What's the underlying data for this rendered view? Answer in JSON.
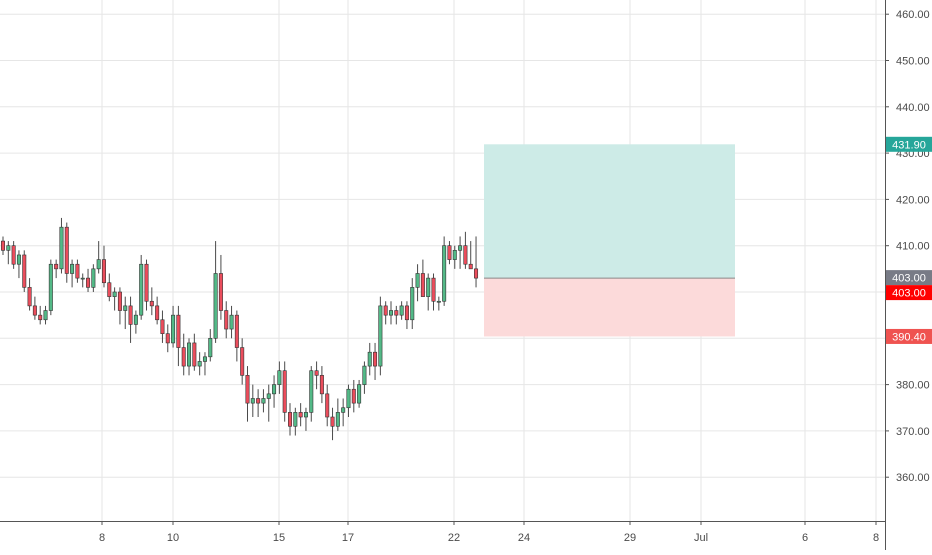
{
  "chart_data": {
    "type": "candlestick",
    "y_axis": {
      "ticks": [
        "460.00",
        "450.00",
        "440.00",
        "430.00",
        "420.00",
        "410.00",
        "400.00",
        "390.00",
        "380.00",
        "370.00",
        "360.00"
      ],
      "tick_values": [
        460,
        450,
        440,
        430,
        420,
        410,
        400,
        390,
        380,
        370,
        360
      ],
      "range": [
        351,
        463
      ]
    },
    "x_axis": {
      "ticks": [
        "8",
        "10",
        "15",
        "17",
        "22",
        "24",
        "29",
        "Jul",
        "6",
        "8"
      ]
    },
    "candles": [
      [
        411,
        412,
        408,
        409
      ],
      [
        409,
        411,
        406,
        410
      ],
      [
        410,
        411,
        405,
        406
      ],
      [
        406,
        409,
        403,
        408
      ],
      [
        408,
        409,
        400,
        401
      ],
      [
        401,
        403,
        396,
        397
      ],
      [
        397,
        399,
        394,
        395
      ],
      [
        395,
        397,
        393,
        394
      ],
      [
        394,
        397,
        393,
        396
      ],
      [
        396,
        407,
        395,
        406
      ],
      [
        406,
        407,
        403,
        405
      ],
      [
        405,
        416,
        404,
        414
      ],
      [
        414,
        415,
        402,
        404
      ],
      [
        404,
        407,
        401,
        406
      ],
      [
        406,
        407,
        402,
        403
      ],
      [
        403,
        404,
        401,
        403
      ],
      [
        403,
        405,
        400,
        401
      ],
      [
        401,
        406,
        400,
        405
      ],
      [
        405,
        411,
        404,
        407
      ],
      [
        407,
        410,
        401,
        402
      ],
      [
        402,
        404,
        398,
        399
      ],
      [
        399,
        401,
        396,
        400
      ],
      [
        400,
        401,
        393,
        396
      ],
      [
        396,
        399,
        392,
        397
      ],
      [
        397,
        399,
        389,
        393
      ],
      [
        393,
        396,
        391,
        395
      ],
      [
        395,
        408,
        394,
        406
      ],
      [
        406,
        407,
        396,
        398
      ],
      [
        398,
        401,
        395,
        397
      ],
      [
        397,
        399,
        393,
        394
      ],
      [
        394,
        396,
        389,
        391
      ],
      [
        391,
        393,
        387,
        389
      ],
      [
        389,
        397,
        388,
        395
      ],
      [
        395,
        397,
        384,
        388
      ],
      [
        388,
        391,
        382,
        384
      ],
      [
        384,
        390,
        382,
        389
      ],
      [
        389,
        391,
        383,
        384
      ],
      [
        384,
        387,
        382,
        385
      ],
      [
        385,
        387,
        382,
        386
      ],
      [
        386,
        392,
        385,
        390
      ],
      [
        390,
        411,
        389,
        404
      ],
      [
        404,
        408,
        394,
        396
      ],
      [
        396,
        398,
        390,
        392
      ],
      [
        392,
        397,
        390,
        395
      ],
      [
        395,
        396,
        385,
        388
      ],
      [
        388,
        390,
        380,
        382
      ],
      [
        382,
        384,
        372,
        376
      ],
      [
        376,
        380,
        373,
        377
      ],
      [
        377,
        379,
        373,
        376
      ],
      [
        376,
        379,
        374,
        377
      ],
      [
        377,
        380,
        372,
        378
      ],
      [
        378,
        382,
        375,
        380
      ],
      [
        380,
        385,
        378,
        383
      ],
      [
        383,
        385,
        372,
        374
      ],
      [
        374,
        376,
        369,
        371
      ],
      [
        371,
        375,
        369,
        374
      ],
      [
        374,
        376,
        371,
        373
      ],
      [
        373,
        375,
        370,
        374
      ],
      [
        374,
        384,
        372,
        383
      ],
      [
        383,
        385,
        379,
        382
      ],
      [
        382,
        384,
        376,
        378
      ],
      [
        378,
        380,
        371,
        373
      ],
      [
        373,
        375,
        368,
        371
      ],
      [
        371,
        377,
        370,
        374
      ],
      [
        374,
        377,
        371,
        375
      ],
      [
        375,
        380,
        373,
        379
      ],
      [
        379,
        381,
        374,
        376
      ],
      [
        376,
        381,
        375,
        380
      ],
      [
        380,
        385,
        378,
        384
      ],
      [
        384,
        389,
        382,
        387
      ],
      [
        387,
        389,
        381,
        384
      ],
      [
        384,
        399,
        382,
        397
      ],
      [
        397,
        398,
        393,
        395
      ],
      [
        395,
        398,
        393,
        396
      ],
      [
        396,
        397,
        393,
        395
      ],
      [
        395,
        398,
        394,
        397
      ],
      [
        397,
        398,
        392,
        394
      ],
      [
        394,
        403,
        392,
        401
      ],
      [
        401,
        406,
        398,
        404
      ],
      [
        404,
        407,
        399,
        399
      ],
      [
        399,
        404,
        396,
        403
      ],
      [
        403,
        404,
        396,
        398
      ],
      [
        398,
        399,
        396,
        398
      ],
      [
        398,
        412,
        397,
        410
      ],
      [
        410,
        411,
        406,
        407
      ],
      [
        407,
        410,
        405,
        409
      ],
      [
        409,
        412,
        405,
        410
      ],
      [
        410,
        413,
        405,
        406
      ],
      [
        406,
        411,
        405,
        405
      ],
      [
        405,
        412,
        401,
        403
      ]
    ],
    "position": {
      "target": 431.9,
      "entry": 403.0,
      "stop": 390.4,
      "target_label": "431.90",
      "entry_label": "403.00",
      "stop_label": "390.40",
      "last_price_label": "403.00"
    },
    "colors": {
      "up": "#53b987",
      "down": "#eb4d5c",
      "wick": "#4a4a4a",
      "candle_border": "#333333",
      "profit_fill": "#cdebe7",
      "loss_fill": "#fcdada",
      "target_tag": "#26a69a",
      "stop_tag": "#ef5350",
      "entry_tag": "#ff0000",
      "last_price_tag": "#787b86",
      "grid": "#e6e6e6"
    }
  }
}
